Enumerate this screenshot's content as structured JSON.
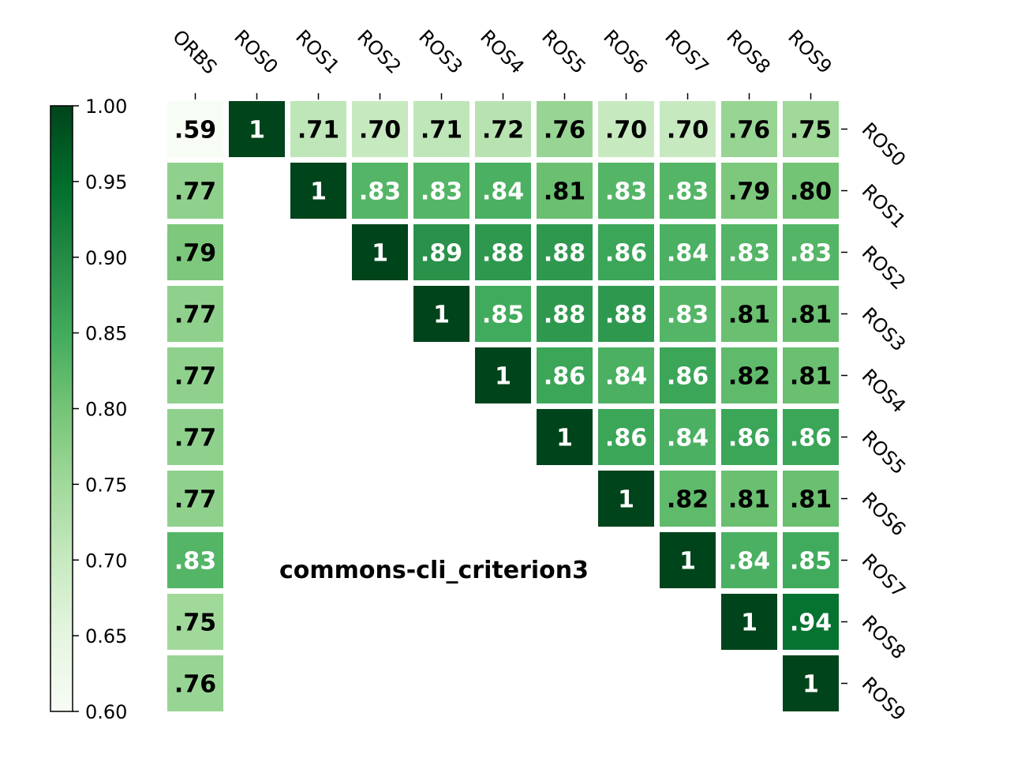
{
  "chart_data": {
    "type": "heatmap",
    "title": "commons-cli_criterion3",
    "columns": [
      "ORBS",
      "ROS0",
      "ROS1",
      "ROS2",
      "ROS3",
      "ROS4",
      "ROS5",
      "ROS6",
      "ROS7",
      "ROS8",
      "ROS9"
    ],
    "rows": [
      "ROS0",
      "ROS1",
      "ROS2",
      "ROS3",
      "ROS4",
      "ROS5",
      "ROS6",
      "ROS7",
      "ROS8",
      "ROS9"
    ],
    "values": [
      [
        0.59,
        1,
        0.71,
        0.7,
        0.71,
        0.72,
        0.76,
        0.7,
        0.7,
        0.76,
        0.75
      ],
      [
        0.77,
        null,
        1,
        0.83,
        0.83,
        0.84,
        0.81,
        0.83,
        0.83,
        0.79,
        0.8
      ],
      [
        0.79,
        null,
        null,
        1,
        0.89,
        0.88,
        0.88,
        0.86,
        0.84,
        0.83,
        0.83
      ],
      [
        0.77,
        null,
        null,
        null,
        1,
        0.85,
        0.88,
        0.88,
        0.83,
        0.81,
        0.81
      ],
      [
        0.77,
        null,
        null,
        null,
        null,
        1,
        0.86,
        0.84,
        0.86,
        0.82,
        0.81
      ],
      [
        0.77,
        null,
        null,
        null,
        null,
        null,
        1,
        0.86,
        0.84,
        0.86,
        0.86
      ],
      [
        0.77,
        null,
        null,
        null,
        null,
        null,
        null,
        1,
        0.82,
        0.81,
        0.81
      ],
      [
        0.83,
        null,
        null,
        null,
        null,
        null,
        null,
        null,
        1,
        0.84,
        0.85
      ],
      [
        0.75,
        null,
        null,
        null,
        null,
        null,
        null,
        null,
        null,
        1,
        0.94
      ],
      [
        0.76,
        null,
        null,
        null,
        null,
        null,
        null,
        null,
        null,
        null,
        1
      ]
    ],
    "labels": [
      [
        ".59",
        "1",
        ".71",
        ".70",
        ".71",
        ".72",
        ".76",
        ".70",
        ".70",
        ".76",
        ".75"
      ],
      [
        ".77",
        "",
        "1",
        ".83",
        ".83",
        ".84",
        ".81",
        ".83",
        ".83",
        ".79",
        ".80"
      ],
      [
        ".79",
        "",
        "",
        "1",
        ".89",
        ".88",
        ".88",
        ".86",
        ".84",
        ".83",
        ".83"
      ],
      [
        ".77",
        "",
        "",
        "",
        "1",
        ".85",
        ".88",
        ".88",
        ".83",
        ".81",
        ".81"
      ],
      [
        ".77",
        "",
        "",
        "",
        "",
        "1",
        ".86",
        ".84",
        ".86",
        ".82",
        ".81"
      ],
      [
        ".77",
        "",
        "",
        "",
        "",
        "",
        "1",
        ".86",
        ".84",
        ".86",
        ".86"
      ],
      [
        ".77",
        "",
        "",
        "",
        "",
        "",
        "",
        "1",
        ".82",
        ".81",
        ".81"
      ],
      [
        ".83",
        "",
        "",
        "",
        "",
        "",
        "",
        "",
        "1",
        ".84",
        ".85"
      ],
      [
        ".75",
        "",
        "",
        "",
        "",
        "",
        "",
        "",
        "",
        "1",
        ".94"
      ],
      [
        ".76",
        "",
        "",
        "",
        "",
        "",
        "",
        "",
        "",
        "",
        "1"
      ]
    ],
    "colorbar": {
      "range": [
        0.6,
        1.0
      ],
      "ticks": [
        1.0,
        0.95,
        0.9,
        0.85,
        0.8,
        0.75,
        0.7,
        0.65,
        0.6
      ],
      "tick_labels": [
        "1.00",
        "0.95",
        "0.90",
        "0.85",
        "0.80",
        "0.75",
        "0.70",
        "0.65",
        "0.60"
      ],
      "colormap": "Greens",
      "color_stops": [
        "#f7fcf5",
        "#e5f5e0",
        "#c7e9c0",
        "#a1d99b",
        "#74c476",
        "#41ab5d",
        "#238b45",
        "#006d2c",
        "#00441b"
      ]
    },
    "x_axis_position": "top",
    "y_axis_position": "right",
    "grid": false,
    "legend": "colorbar-left"
  }
}
